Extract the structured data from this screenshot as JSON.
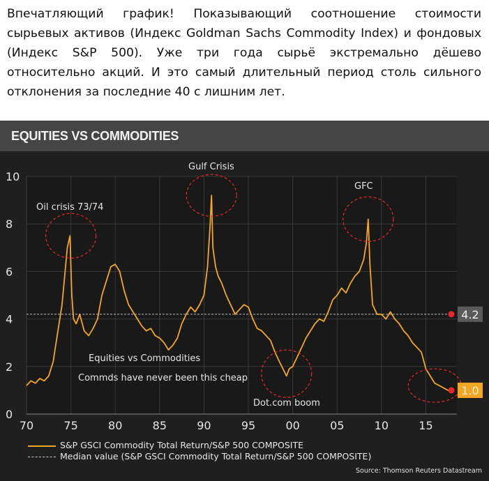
{
  "caption": "Впечатляющий график! Показывающий соотношение стоимости сырьевых активов (Индекс Goldman Sachs Commodity Index) и фондовых (Индекс S&P 500). Уже три года сырьё экстремально дёшево относительно акций. И это самый длительный период столь сильного отклонения за последние 40 с лишним лет.",
  "panel": {
    "title": "EQUITIES VS COMMODITIES",
    "source": "Source: Thomson Reuters Datastream"
  },
  "chart_data": {
    "type": "line",
    "title": "EQUITIES VS COMMODITIES",
    "xlabel": "",
    "ylabel": "",
    "xlim": [
      1970,
      2018.5
    ],
    "ylim": [
      0,
      10
    ],
    "x_tick_values": [
      1970,
      1975,
      1980,
      1985,
      1990,
      1995,
      2000,
      2005,
      2010,
      2015
    ],
    "x_tick_labels": [
      "70",
      "75",
      "80",
      "85",
      "90",
      "95",
      "00",
      "05",
      "10",
      "15"
    ],
    "y_ticks": [
      0,
      2,
      4,
      6,
      8,
      10
    ],
    "grid": true,
    "legend_position": "bottom-left",
    "colors": {
      "series": "#f5a623",
      "median": "#bbbbbb",
      "marker": "#e8262b",
      "background": "#1f1f1f"
    },
    "series": [
      {
        "name": "S&P GSCI Commodity Total Return/S&P 500 COMPOSITE",
        "x": [
          1970.0,
          1970.5,
          1971.0,
          1971.5,
          1972.0,
          1972.5,
          1973.0,
          1973.5,
          1974.0,
          1974.3,
          1974.6,
          1974.9,
          1975.1,
          1975.3,
          1975.6,
          1976.0,
          1976.5,
          1977.0,
          1977.5,
          1978.0,
          1978.5,
          1979.0,
          1979.5,
          1980.0,
          1980.5,
          1981.0,
          1981.5,
          1982.0,
          1982.5,
          1983.0,
          1983.5,
          1984.0,
          1984.5,
          1985.0,
          1985.5,
          1986.0,
          1986.5,
          1987.0,
          1987.5,
          1988.0,
          1988.5,
          1989.0,
          1989.5,
          1990.0,
          1990.4,
          1990.7,
          1990.85,
          1991.0,
          1991.3,
          1991.6,
          1992.0,
          1992.5,
          1993.0,
          1993.5,
          1994.0,
          1994.5,
          1995.0,
          1995.5,
          1996.0,
          1996.5,
          1997.0,
          1997.5,
          1998.0,
          1998.5,
          1998.9,
          1999.3,
          1999.6,
          2000.0,
          2000.5,
          2001.0,
          2001.5,
          2002.0,
          2002.5,
          2003.0,
          2003.5,
          2004.0,
          2004.5,
          2005.0,
          2005.5,
          2006.0,
          2006.5,
          2007.0,
          2007.5,
          2008.0,
          2008.3,
          2008.5,
          2008.7,
          2009.0,
          2009.5,
          2010.0,
          2010.5,
          2011.0,
          2011.5,
          2012.0,
          2012.5,
          2013.0,
          2013.5,
          2014.0,
          2014.5,
          2015.0,
          2015.5,
          2016.0,
          2016.5,
          2017.0,
          2017.5,
          2018.0
        ],
        "y": [
          1.2,
          1.4,
          1.3,
          1.5,
          1.4,
          1.6,
          2.2,
          3.4,
          4.6,
          5.8,
          7.0,
          7.5,
          5.0,
          4.0,
          3.8,
          4.2,
          3.5,
          3.3,
          3.6,
          4.0,
          5.0,
          5.6,
          6.2,
          6.3,
          6.0,
          5.2,
          4.6,
          4.3,
          4.0,
          3.7,
          3.5,
          3.6,
          3.3,
          3.2,
          3.0,
          2.7,
          2.9,
          3.2,
          3.8,
          4.2,
          4.5,
          4.3,
          4.6,
          5.0,
          6.2,
          8.0,
          9.2,
          7.0,
          6.2,
          5.8,
          5.5,
          5.0,
          4.6,
          4.2,
          4.4,
          4.6,
          4.5,
          4.0,
          3.6,
          3.5,
          3.3,
          3.1,
          2.6,
          2.2,
          1.9,
          1.6,
          1.9,
          2.0,
          2.4,
          2.8,
          3.2,
          3.5,
          3.8,
          4.0,
          3.9,
          4.3,
          4.8,
          5.0,
          5.3,
          5.1,
          5.5,
          5.8,
          6.0,
          6.5,
          7.2,
          8.2,
          6.3,
          4.6,
          4.2,
          4.2,
          4.0,
          4.3,
          4.0,
          3.8,
          3.5,
          3.3,
          3.0,
          2.8,
          2.6,
          1.9,
          1.6,
          1.3,
          1.2,
          1.1,
          1.0,
          1.0
        ]
      },
      {
        "name": "Median value (S&P GSCI Commodity Total Return/S&P 500 COMPOSITE)",
        "value": 4.2
      }
    ],
    "end_labels": [
      {
        "value": 4.2,
        "label": "4.2",
        "box_color": "#5a5a5a"
      },
      {
        "value": 1.0,
        "label": "1.0",
        "box_color": "#f5a623"
      }
    ],
    "annotations": [
      {
        "text": "Oil crisis 73/74",
        "x": 1974.5,
        "y": 7.5
      },
      {
        "text": "Gulf Crisis",
        "x": 1990.85,
        "y": 9.2
      },
      {
        "text": "GFC",
        "x": 2008.5,
        "y": 8.2
      },
      {
        "text": "Dot.com boom",
        "x": 1999.3,
        "y": 1.6
      },
      {
        "text": "Equities vs Commodities",
        "x": 1987.5,
        "y": 2.5
      },
      {
        "text": "Commds have never been this cheap",
        "x": 1987.5,
        "y": 1.6
      }
    ]
  }
}
